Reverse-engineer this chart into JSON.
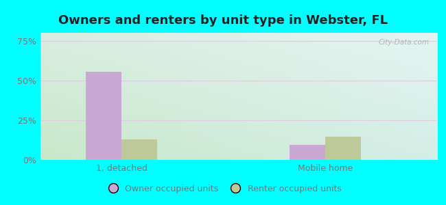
{
  "title": "Owners and renters by unit type in Webster, FL",
  "categories": [
    "1, detached",
    "Mobile home"
  ],
  "owner_values": [
    55.5,
    9.5
  ],
  "renter_values": [
    13.0,
    14.5
  ],
  "owner_color": "#c9a8d4",
  "renter_color": "#bec99a",
  "yticks": [
    0,
    25,
    50,
    75
  ],
  "ytick_labels": [
    "0%",
    "25%",
    "50%",
    "75%"
  ],
  "ylim": [
    0,
    80
  ],
  "bar_width": 0.35,
  "group_positions": [
    1.0,
    3.0
  ],
  "legend_labels": [
    "Owner occupied units",
    "Renter occupied units"
  ],
  "outer_color": "#00ffff",
  "watermark": "City-Data.com",
  "title_fontsize": 13,
  "tick_fontsize": 9,
  "legend_fontsize": 9,
  "bg_color_topleft": "#d8ede0",
  "bg_color_topright": "#e8f5f5",
  "bg_color_botleft": "#c8e8c8",
  "bg_color_botright": "#d8f0ee"
}
